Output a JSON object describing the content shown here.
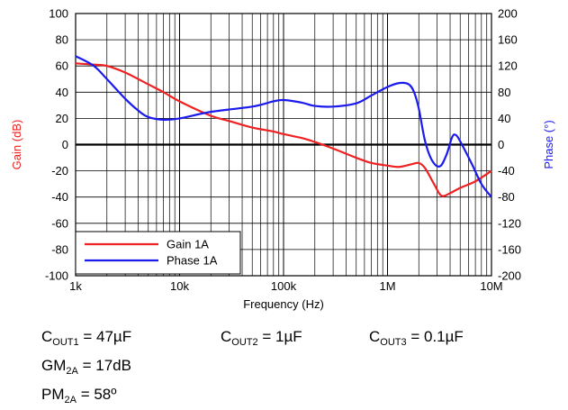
{
  "chart_data": {
    "type": "line",
    "x_scale": "log",
    "xlabel": "Frequency (Hz)",
    "xlim": [
      1000,
      10000000
    ],
    "x_tick_labels": [
      "1k",
      "10k",
      "100k",
      "1M",
      "10M"
    ],
    "x_tick_values": [
      1000,
      10000,
      100000,
      1000000,
      10000000
    ],
    "y_left": {
      "label": "Gain (dB)",
      "color": "#ee2222",
      "lim": [
        -100,
        100
      ],
      "ticks": [
        -100,
        -80,
        -60,
        -40,
        -20,
        0,
        20,
        40,
        60,
        80,
        100
      ]
    },
    "y_right": {
      "label": "Phase (°)",
      "color": "#1a1aee",
      "lim": [
        -200,
        200
      ],
      "ticks": [
        -200,
        -160,
        -120,
        -80,
        -40,
        0,
        40,
        80,
        120,
        160,
        200
      ]
    },
    "grid": true,
    "legend_position": "bottom-left",
    "series": [
      {
        "name": "Gain 1A",
        "axis": "left",
        "color": "#ee2222",
        "points": [
          [
            1000,
            62
          ],
          [
            1500,
            61
          ],
          [
            2000,
            60
          ],
          [
            3000,
            55
          ],
          [
            5000,
            46
          ],
          [
            7000,
            40
          ],
          [
            10000,
            33
          ],
          [
            20000,
            22
          ],
          [
            30000,
            18
          ],
          [
            50000,
            13
          ],
          [
            80000,
            10
          ],
          [
            100000,
            8
          ],
          [
            150000,
            5
          ],
          [
            200000,
            2
          ],
          [
            300000,
            -3
          ],
          [
            500000,
            -10
          ],
          [
            700000,
            -14
          ],
          [
            1000000,
            -16
          ],
          [
            1300000,
            -17
          ],
          [
            1700000,
            -15
          ],
          [
            2000000,
            -14
          ],
          [
            2300000,
            -18
          ],
          [
            2800000,
            -30
          ],
          [
            3300000,
            -39
          ],
          [
            4000000,
            -37
          ],
          [
            5000000,
            -33
          ],
          [
            7000000,
            -28
          ],
          [
            10000000,
            -20
          ]
        ]
      },
      {
        "name": "Phase 1A",
        "axis": "right",
        "color": "#1a1aee",
        "points": [
          [
            1000,
            135
          ],
          [
            1500,
            120
          ],
          [
            2000,
            100
          ],
          [
            3000,
            70
          ],
          [
            4000,
            52
          ],
          [
            5000,
            42
          ],
          [
            7000,
            38
          ],
          [
            10000,
            40
          ],
          [
            20000,
            50
          ],
          [
            50000,
            58
          ],
          [
            80000,
            66
          ],
          [
            100000,
            68
          ],
          [
            150000,
            64
          ],
          [
            200000,
            59
          ],
          [
            300000,
            58
          ],
          [
            500000,
            63
          ],
          [
            700000,
            75
          ],
          [
            1000000,
            88
          ],
          [
            1300000,
            94
          ],
          [
            1600000,
            92
          ],
          [
            1800000,
            80
          ],
          [
            2000000,
            55
          ],
          [
            2300000,
            5
          ],
          [
            2700000,
            -25
          ],
          [
            3200000,
            -33
          ],
          [
            3700000,
            -15
          ],
          [
            4200000,
            12
          ],
          [
            4600000,
            14
          ],
          [
            5200000,
            0
          ],
          [
            6500000,
            -30
          ],
          [
            8000000,
            -60
          ],
          [
            10000000,
            -80
          ]
        ]
      }
    ]
  },
  "notes": {
    "cout1": {
      "main": "C",
      "sub": "OUT1",
      "value": " = 47µF"
    },
    "cout2": {
      "main": "C",
      "sub": "OUT2",
      "value": " = 1µF"
    },
    "cout3": {
      "main": "C",
      "sub": "OUT3",
      "value": " = 0.1µF"
    },
    "gm": {
      "main": "GM",
      "sub": "2A",
      "value": " = 17dB"
    },
    "pm": {
      "main": "PM",
      "sub": "2A",
      "value": " = 58º"
    }
  }
}
